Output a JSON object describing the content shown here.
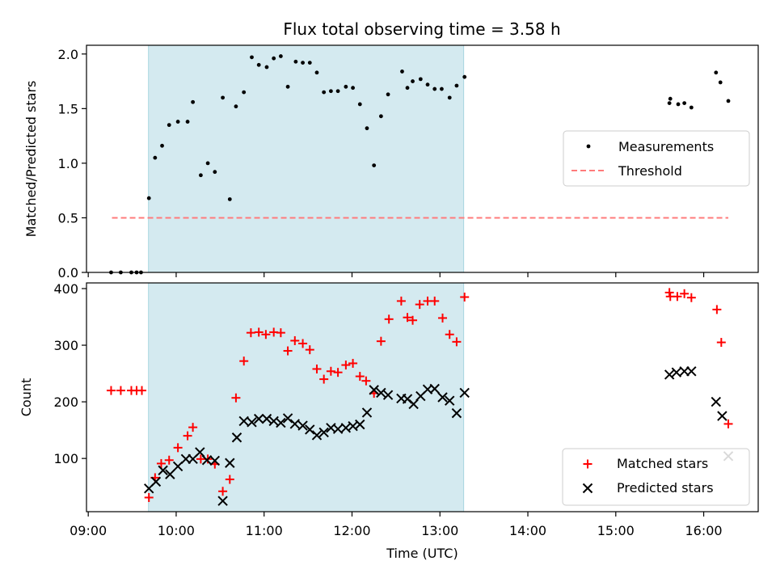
{
  "title": "Flux total observing time = 3.58 h",
  "colors": {
    "shade": "#d4eaf0",
    "shade_edge": "#a9d6e0",
    "threshold": "#ff7b7b",
    "matched": "#ff0000",
    "predicted": "#000000",
    "measurement": "#000000"
  },
  "chart_data": [
    {
      "name": "ratio",
      "type": "scatter",
      "ylabel": "Matched/Predicted stars",
      "ylim": [
        0,
        2.08
      ],
      "yticks": [
        0.0,
        0.5,
        1.0,
        1.5,
        2.0
      ],
      "ytick_labels": [
        "0.0",
        "0.5",
        "1.0",
        "1.5",
        "2.0"
      ],
      "xlim": [
        8.98,
        16.62
      ],
      "observing_window": [
        9.685,
        13.27
      ],
      "threshold": {
        "value": 0.5,
        "x": [
          9.27,
          16.28
        ],
        "label": "Threshold"
      },
      "series": [
        {
          "name": "Measurements",
          "marker": "dot",
          "points": [
            [
              9.26,
              0
            ],
            [
              9.37,
              0
            ],
            [
              9.49,
              0
            ],
            [
              9.55,
              0
            ],
            [
              9.6,
              0
            ],
            [
              9.69,
              0.68
            ],
            [
              9.76,
              1.05
            ],
            [
              9.84,
              1.16
            ],
            [
              9.92,
              1.35
            ],
            [
              10.02,
              1.38
            ],
            [
              10.13,
              1.38
            ],
            [
              10.19,
              1.56
            ],
            [
              10.28,
              0.89
            ],
            [
              10.36,
              1.0
            ],
            [
              10.44,
              0.92
            ],
            [
              10.53,
              1.6
            ],
            [
              10.61,
              0.67
            ],
            [
              10.68,
              1.52
            ],
            [
              10.77,
              1.65
            ],
            [
              10.86,
              1.97
            ],
            [
              10.94,
              1.9
            ],
            [
              11.03,
              1.88
            ],
            [
              11.11,
              1.96
            ],
            [
              11.19,
              1.98
            ],
            [
              11.27,
              1.7
            ],
            [
              11.36,
              1.93
            ],
            [
              11.44,
              1.92
            ],
            [
              11.52,
              1.92
            ],
            [
              11.6,
              1.83
            ],
            [
              11.68,
              1.65
            ],
            [
              11.76,
              1.66
            ],
            [
              11.84,
              1.66
            ],
            [
              11.93,
              1.7
            ],
            [
              12.01,
              1.69
            ],
            [
              12.09,
              1.54
            ],
            [
              12.17,
              1.32
            ],
            [
              12.25,
              0.98
            ],
            [
              12.33,
              1.43
            ],
            [
              12.41,
              1.63
            ],
            [
              12.57,
              1.84
            ],
            [
              12.63,
              1.69
            ],
            [
              12.69,
              1.75
            ],
            [
              12.78,
              1.77
            ],
            [
              12.86,
              1.72
            ],
            [
              12.94,
              1.68
            ],
            [
              13.02,
              1.68
            ],
            [
              13.11,
              1.6
            ],
            [
              13.19,
              1.71
            ],
            [
              13.28,
              1.79
            ],
            [
              15.61,
              1.55
            ],
            [
              15.62,
              1.59
            ],
            [
              15.71,
              1.54
            ],
            [
              15.78,
              1.55
            ],
            [
              15.86,
              1.51
            ],
            [
              16.14,
              1.83
            ],
            [
              16.19,
              1.74
            ],
            [
              16.28,
              1.57
            ]
          ]
        }
      ],
      "legend": {
        "position": "center-right",
        "entries": [
          "Measurements",
          "Threshold"
        ]
      }
    },
    {
      "name": "count",
      "type": "scatter",
      "ylabel": "Count",
      "xlabel": "Time (UTC)",
      "ylim": [
        6,
        410
      ],
      "yticks": [
        100,
        200,
        300,
        400
      ],
      "ytick_labels": [
        "100",
        "200",
        "300",
        "400"
      ],
      "xlim": [
        8.98,
        16.62
      ],
      "xticks": [
        9,
        10,
        11,
        12,
        13,
        14,
        15,
        16
      ],
      "xtick_labels": [
        "09:00",
        "10:00",
        "11:00",
        "12:00",
        "13:00",
        "14:00",
        "15:00",
        "16:00"
      ],
      "observing_window": [
        9.685,
        13.27
      ],
      "series": [
        {
          "name": "Matched stars",
          "marker": "plus",
          "points": [
            [
              9.26,
              220
            ],
            [
              9.37,
              220
            ],
            [
              9.49,
              220
            ],
            [
              9.55,
              220
            ],
            [
              9.61,
              220
            ],
            [
              9.69,
              31
            ],
            [
              9.76,
              66
            ],
            [
              9.83,
              91
            ],
            [
              9.92,
              97
            ],
            [
              10.02,
              119
            ],
            [
              10.13,
              140
            ],
            [
              10.19,
              155
            ],
            [
              10.28,
              99
            ],
            [
              10.36,
              99
            ],
            [
              10.44,
              90
            ],
            [
              10.53,
              42
            ],
            [
              10.61,
              63
            ],
            [
              10.68,
              207
            ],
            [
              10.77,
              272
            ],
            [
              10.85,
              322
            ],
            [
              10.94,
              323
            ],
            [
              11.02,
              319
            ],
            [
              11.11,
              323
            ],
            [
              11.19,
              322
            ],
            [
              11.27,
              290
            ],
            [
              11.35,
              308
            ],
            [
              11.44,
              303
            ],
            [
              11.52,
              292
            ],
            [
              11.6,
              258
            ],
            [
              11.68,
              240
            ],
            [
              11.76,
              254
            ],
            [
              11.84,
              252
            ],
            [
              11.93,
              265
            ],
            [
              12.01,
              268
            ],
            [
              12.09,
              245
            ],
            [
              12.16,
              237
            ],
            [
              12.25,
              215
            ],
            [
              12.33,
              307
            ],
            [
              12.42,
              346
            ],
            [
              12.56,
              378
            ],
            [
              12.63,
              349
            ],
            [
              12.69,
              344
            ],
            [
              12.77,
              372
            ],
            [
              12.86,
              378
            ],
            [
              12.94,
              378
            ],
            [
              13.03,
              348
            ],
            [
              13.11,
              319
            ],
            [
              13.19,
              306
            ],
            [
              13.28,
              385
            ],
            [
              15.61,
              393
            ],
            [
              15.62,
              386
            ],
            [
              15.7,
              386
            ],
            [
              15.78,
              391
            ],
            [
              15.86,
              384
            ],
            [
              16.15,
              363
            ],
            [
              16.2,
              305
            ],
            [
              16.28,
              161
            ]
          ]
        },
        {
          "name": "Predicted stars",
          "marker": "x",
          "points": [
            [
              9.69,
              47
            ],
            [
              9.77,
              59
            ],
            [
              9.85,
              79
            ],
            [
              9.93,
              72
            ],
            [
              10.02,
              86
            ],
            [
              10.11,
              99
            ],
            [
              10.19,
              99
            ],
            [
              10.27,
              111
            ],
            [
              10.35,
              97
            ],
            [
              10.44,
              96
            ],
            [
              10.53,
              25
            ],
            [
              10.61,
              92
            ],
            [
              10.69,
              137
            ],
            [
              10.77,
              166
            ],
            [
              10.86,
              164
            ],
            [
              10.94,
              170
            ],
            [
              11.03,
              170
            ],
            [
              11.11,
              166
            ],
            [
              11.19,
              163
            ],
            [
              11.27,
              171
            ],
            [
              11.35,
              161
            ],
            [
              11.44,
              158
            ],
            [
              11.52,
              151
            ],
            [
              11.6,
              141
            ],
            [
              11.68,
              146
            ],
            [
              11.76,
              154
            ],
            [
              11.84,
              152
            ],
            [
              11.93,
              154
            ],
            [
              12.01,
              157
            ],
            [
              12.09,
              160
            ],
            [
              12.17,
              181
            ],
            [
              12.25,
              221
            ],
            [
              12.33,
              216
            ],
            [
              12.41,
              212
            ],
            [
              12.56,
              206
            ],
            [
              12.63,
              205
            ],
            [
              12.7,
              196
            ],
            [
              12.78,
              210
            ],
            [
              12.86,
              222
            ],
            [
              12.94,
              223
            ],
            [
              13.03,
              208
            ],
            [
              13.11,
              202
            ],
            [
              13.19,
              180
            ],
            [
              13.28,
              216
            ],
            [
              15.61,
              248
            ],
            [
              15.69,
              252
            ],
            [
              15.78,
              254
            ],
            [
              15.86,
              254
            ],
            [
              16.14,
              200
            ],
            [
              16.21,
              175
            ],
            [
              16.28,
              104
            ]
          ]
        }
      ],
      "legend": {
        "position": "lower-right",
        "entries": [
          "Matched stars",
          "Predicted stars"
        ]
      }
    }
  ]
}
